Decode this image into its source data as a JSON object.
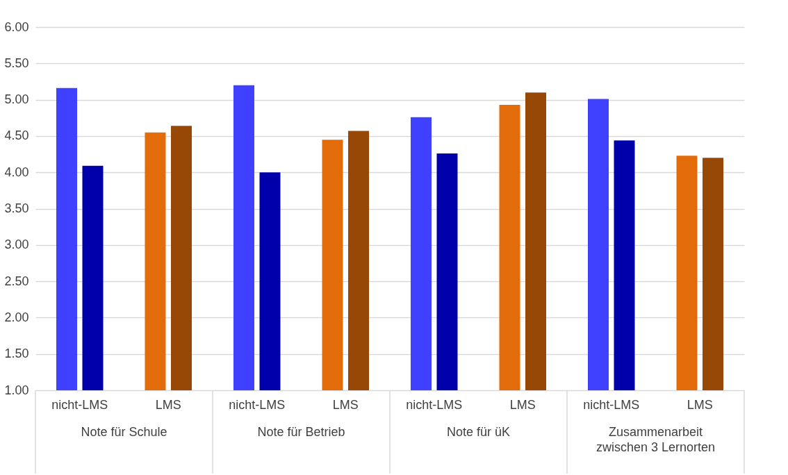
{
  "chart_data": {
    "type": "bar",
    "categories": [
      "nicht-LMS",
      "LMS",
      "nicht-LMS",
      "LMS",
      "nicht-LMS",
      "LMS",
      "nicht-LMS",
      "LMS"
    ],
    "series": [
      {
        "colors": [
          "#4040ff",
          "#e36c0a",
          "#4040ff",
          "#e36c0a",
          "#4040ff",
          "#e36c0a",
          "#4040ff",
          "#e36c0a"
        ],
        "values": [
          5.16,
          4.55,
          5.2,
          4.45,
          4.76,
          4.93,
          5.01,
          4.23
        ]
      },
      {
        "colors": [
          "#0000aa",
          "#974706",
          "#0000aa",
          "#974706",
          "#0000aa",
          "#974706",
          "#0000aa",
          "#974706"
        ],
        "values": [
          4.09,
          4.64,
          4.0,
          4.57,
          4.26,
          5.1,
          4.44,
          4.2
        ]
      }
    ],
    "annotations": [
      "Note für Schule",
      "Note für Betrieb",
      "Note für üK",
      "Zusammenarbeit\nzwischen 3 Lernorten"
    ],
    "ylim": [
      1,
      6
    ],
    "yticks": [
      {
        "value": 1,
        "label": "1.00"
      },
      {
        "value": 1.5,
        "label": "1.50"
      },
      {
        "value": 2,
        "label": "2.00"
      },
      {
        "value": 2.5,
        "label": "2.50"
      },
      {
        "value": 3,
        "label": "3.00"
      },
      {
        "value": 3.5,
        "label": "3.50"
      },
      {
        "value": 4,
        "label": "4.00"
      },
      {
        "value": 4.5,
        "label": "4.50"
      },
      {
        "value": 5,
        "label": "5.00"
      },
      {
        "value": 5.5,
        "label": "5.50"
      },
      {
        "value": 6,
        "label": "6.00"
      }
    ],
    "grid": "y"
  }
}
